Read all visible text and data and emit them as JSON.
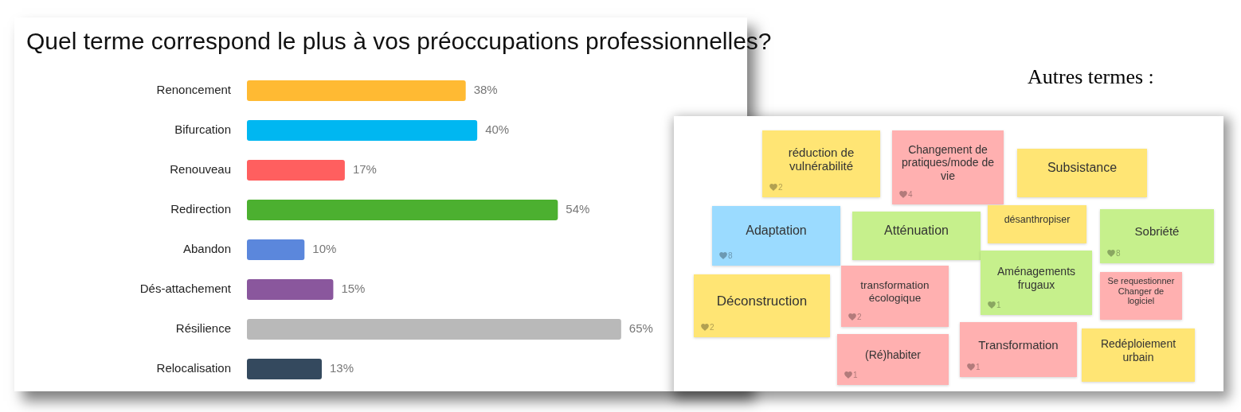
{
  "chart_data": [
    {
      "type": "bar",
      "orientation": "horizontal",
      "title": "Quel terme correspond le plus à vos préoccupations professionnelles?",
      "categories": [
        "Renoncement",
        "Bifurcation",
        "Renouveau",
        "Redirection",
        "Abandon",
        "Dés-attachement",
        "Résilience",
        "Relocalisation"
      ],
      "values": [
        38,
        40,
        17,
        54,
        10,
        15,
        65,
        13
      ],
      "colors": [
        "#ffba33",
        "#00b7f1",
        "#ff5f5f",
        "#4cb030",
        "#5b87dc",
        "#8a579d",
        "#b9b9b9",
        "#34495e"
      ],
      "value_labels": [
        "38%",
        "40%",
        "17%",
        "54%",
        "10%",
        "15%",
        "65%",
        "13%"
      ],
      "tick_labels": "y",
      "grid": false,
      "legend": false
    },
    {
      "type": "other",
      "title": "Autres termes :",
      "categories": [
        "réduction de vulnérabilité",
        "Changement de pratiques/mode de vie",
        "Subsistance",
        "Adaptation",
        "Atténuation",
        "désanthropiser",
        "Sobriété",
        "Déconstruction",
        "transformation écologique",
        "Aménagements frugaux",
        "Se requestionner Changer de logiciel",
        "(Ré)habiter",
        "Transformation",
        "Redéploiement urbain"
      ],
      "values": [
        2,
        4,
        null,
        8,
        null,
        null,
        8,
        2,
        2,
        1,
        null,
        1,
        1,
        null
      ],
      "colors": [
        "#ffe574",
        "#ffb0b0",
        "#ffe574",
        "#9bdbff",
        "#c6f08c",
        "#ffe574",
        "#c6f08c",
        "#ffe574",
        "#ffb0b0",
        "#c6f08c",
        "#ffb0b0",
        "#ffb0b0",
        "#ffb0b0",
        "#ffe574"
      ],
      "data_labels": true
    }
  ]
}
